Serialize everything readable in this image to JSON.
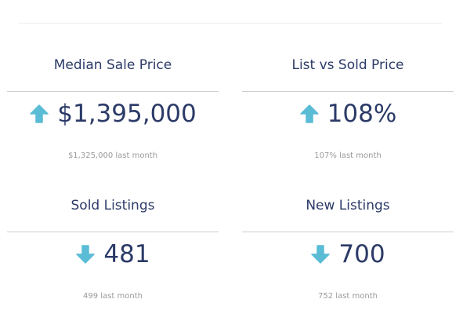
{
  "accent_color": "#5bbcd6",
  "text_color": "#2b3a67",
  "cards": [
    {
      "title": "Median Sale Price",
      "trend": "up",
      "trend_icon": "arrow-up-icon",
      "value": "$1,395,000",
      "previous": "$1,325,000 last month"
    },
    {
      "title": "List vs Sold Price",
      "trend": "up",
      "trend_icon": "arrow-up-icon",
      "value": "108%",
      "previous": "107% last month"
    },
    {
      "title": "Sold Listings",
      "trend": "down",
      "trend_icon": "arrow-down-icon",
      "value": "481",
      "previous": "499 last month"
    },
    {
      "title": "New Listings",
      "trend": "down",
      "trend_icon": "arrow-down-icon",
      "value": "700",
      "previous": "752 last month"
    }
  ]
}
